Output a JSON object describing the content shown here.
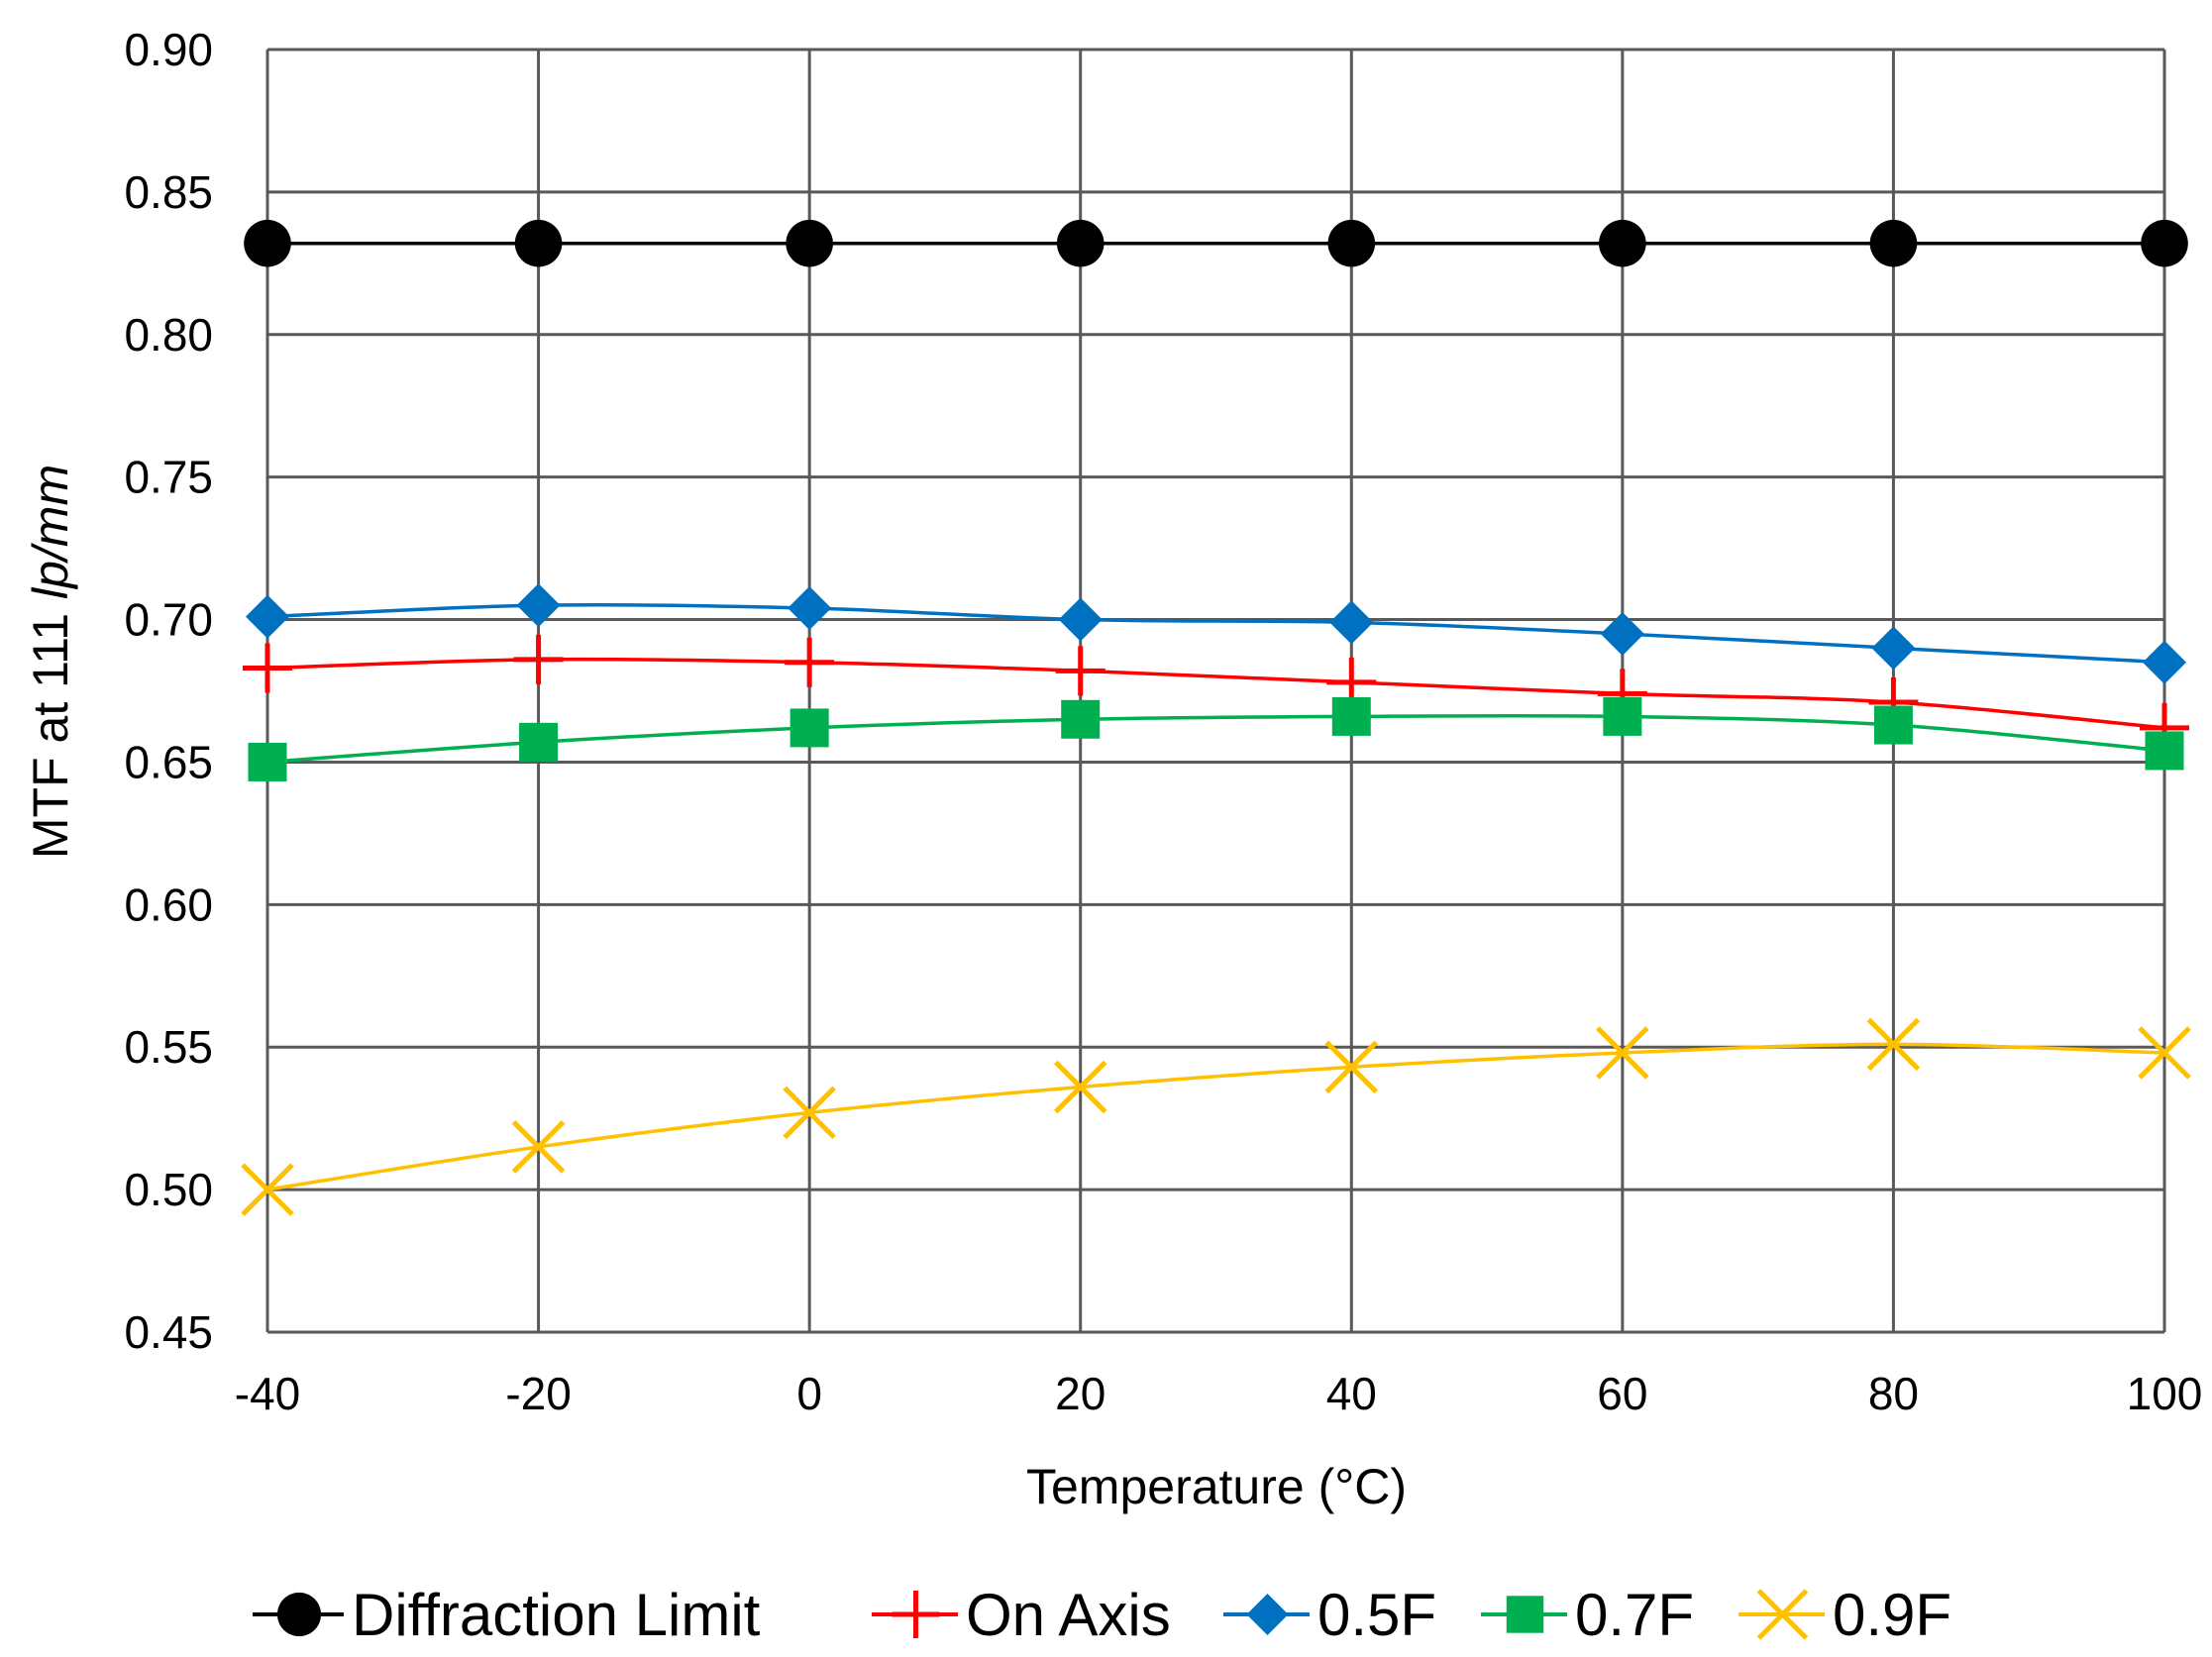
{
  "chart_data": {
    "type": "line",
    "title": "",
    "xlabel": "Temperature (°C)",
    "ylabel_prefix": "MTF at 111 ",
    "ylabel_italic": "lp/mm",
    "x": [
      -40,
      -20,
      0,
      20,
      40,
      60,
      80,
      100
    ],
    "x_tick_labels": [
      "-40",
      "-20",
      "0",
      "20",
      "40",
      "60",
      "80",
      "100"
    ],
    "xlim": [
      -40,
      100
    ],
    "ylim": [
      0.45,
      0.9
    ],
    "y_ticks": [
      0.45,
      0.5,
      0.55,
      0.6,
      0.65,
      0.7,
      0.75,
      0.8,
      0.85,
      0.9
    ],
    "y_tick_labels": [
      "0.45",
      "0.50",
      "0.55",
      "0.60",
      "0.65",
      "0.70",
      "0.75",
      "0.80",
      "0.85",
      "0.90"
    ],
    "grid": true,
    "legend_position": "bottom",
    "series": [
      {
        "name": "Diffraction Limit",
        "color": "#000000",
        "marker": "circle",
        "values": [
          0.832,
          0.832,
          0.832,
          0.832,
          0.832,
          0.832,
          0.832,
          0.832
        ]
      },
      {
        "name": "On Axis",
        "color": "#ff0000",
        "marker": "plus",
        "values": [
          0.683,
          0.686,
          0.685,
          0.682,
          0.678,
          0.674,
          0.671,
          0.662
        ]
      },
      {
        "name": "0.5F",
        "color": "#0070c0",
        "marker": "diamond",
        "values": [
          0.701,
          0.705,
          0.704,
          0.7,
          0.699,
          0.695,
          0.69,
          0.685
        ]
      },
      {
        "name": "0.7F",
        "color": "#00b050",
        "marker": "square",
        "values": [
          0.65,
          0.657,
          0.662,
          0.665,
          0.666,
          0.666,
          0.663,
          0.654
        ]
      },
      {
        "name": "0.9F",
        "color": "#ffc000",
        "marker": "cross",
        "values": [
          0.5,
          0.515,
          0.527,
          0.536,
          0.543,
          0.548,
          0.551,
          0.548
        ]
      }
    ]
  }
}
